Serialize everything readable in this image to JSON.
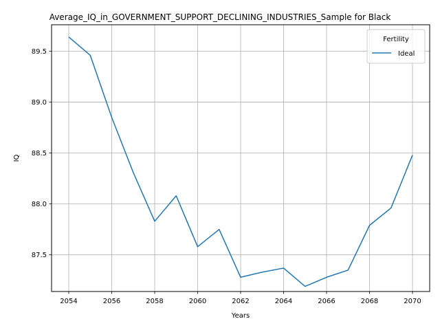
{
  "chart_data": {
    "type": "line",
    "title": "Average_IQ_in_GOVERNMENT_SUPPORT_DECLINING_INDUSTRIES_Sample for Black",
    "xlabel": "Years",
    "ylabel": "IQ",
    "x": [
      2054,
      2055,
      2056,
      2057,
      2058,
      2059,
      2060,
      2061,
      2062,
      2063,
      2064,
      2065,
      2066,
      2067,
      2068,
      2069,
      2070
    ],
    "series": [
      {
        "name": "Ideal",
        "color": "#1f77b4",
        "values": [
          89.64,
          89.46,
          88.85,
          88.31,
          87.83,
          88.08,
          87.58,
          87.75,
          87.28,
          87.33,
          87.37,
          87.19,
          87.28,
          87.35,
          87.79,
          87.96,
          88.48
        ]
      }
    ],
    "xticks": [
      "2054",
      "2056",
      "2058",
      "2060",
      "2062",
      "2064",
      "2066",
      "2068",
      "2070"
    ],
    "yticks": [
      "87.5",
      "88.0",
      "88.5",
      "89.0",
      "89.5"
    ],
    "xlim": [
      2053.2,
      2070.8
    ],
    "ylim": [
      87.14,
      89.76
    ],
    "grid": true,
    "legend": {
      "title": "Fertility",
      "placement": "top-right"
    }
  }
}
